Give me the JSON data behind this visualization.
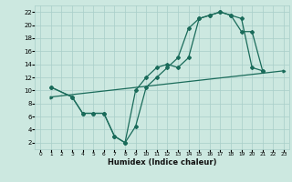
{
  "xlabel": "Humidex (Indice chaleur)",
  "bg_color": "#cce8e0",
  "grid_color": "#a8cec8",
  "line_color": "#1a6b5a",
  "xlim": [
    -0.5,
    23.5
  ],
  "ylim": [
    1,
    23
  ],
  "xticks": [
    0,
    1,
    2,
    3,
    4,
    5,
    6,
    7,
    8,
    9,
    10,
    11,
    12,
    13,
    14,
    15,
    16,
    17,
    18,
    19,
    20,
    21,
    22,
    23
  ],
  "yticks": [
    2,
    4,
    6,
    8,
    10,
    12,
    14,
    16,
    18,
    20,
    22
  ],
  "line1_x": [
    1,
    3,
    4,
    5,
    6,
    7,
    8,
    9,
    10,
    11,
    12,
    13,
    14,
    15,
    16,
    17,
    18,
    19,
    20,
    21
  ],
  "line1_y": [
    10.5,
    9.0,
    6.5,
    6.5,
    6.5,
    3.0,
    2.0,
    10.0,
    12.0,
    13.5,
    14.0,
    13.5,
    15.0,
    21.0,
    21.5,
    22.0,
    21.5,
    21.0,
    13.5,
    13.0
  ],
  "line2_x": [
    1,
    3,
    4,
    5,
    6,
    7,
    8,
    9,
    10,
    11,
    12,
    13,
    14,
    15,
    16,
    17,
    18,
    19,
    20,
    21
  ],
  "line2_y": [
    10.5,
    9.0,
    6.5,
    6.5,
    6.5,
    3.0,
    2.0,
    4.5,
    10.5,
    12.0,
    13.5,
    15.0,
    19.5,
    21.0,
    21.5,
    22.0,
    21.5,
    19.0,
    19.0,
    13.0
  ],
  "line3_x": [
    1,
    23
  ],
  "line3_y": [
    9.0,
    13.0
  ]
}
